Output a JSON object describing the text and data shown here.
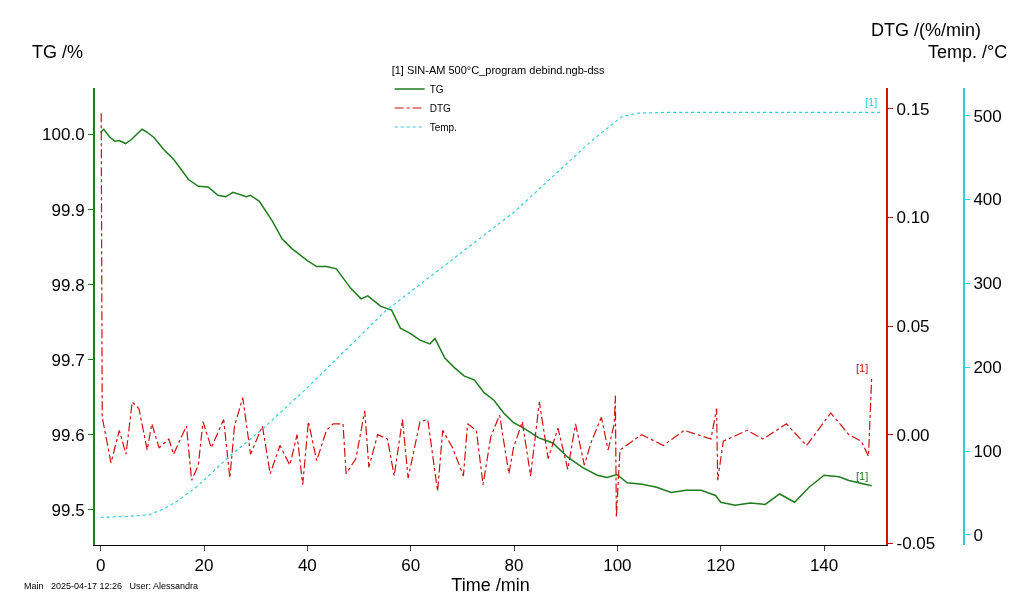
{
  "chart_data": {
    "type": "line",
    "legend_title": "[1] SIN-AM 500°C_program debind.ngb-dss",
    "xlabel": "Time /min",
    "ylabel": "TG /%",
    "y2label": "DTG /(%/min)",
    "y3label": "Temp. /°C",
    "xlim": [
      -1.1,
      152
    ],
    "xticks": [
      0,
      20,
      40,
      60,
      80,
      100,
      120,
      140
    ],
    "ylim": [
      99.453,
      100.062
    ],
    "yticks": [
      {
        "value": 99.5,
        "label": "99.5"
      },
      {
        "value": 99.6,
        "label": "99.6"
      },
      {
        "value": 99.7,
        "label": "99.7"
      },
      {
        "value": 99.8,
        "label": "99.8"
      },
      {
        "value": 99.9,
        "label": "99.9"
      },
      {
        "value": 100.0,
        "label": "100.0"
      }
    ],
    "y2lim": [
      -0.0508,
      0.1596
    ],
    "y2ticks": [
      -0.05,
      {
        "value": 0,
        "label": "0.00"
      },
      0.05,
      {
        "value": 0.1,
        "label": "0.10"
      },
      0.15
    ],
    "y3lim": [
      -12,
      533
    ],
    "y3ticks": [
      0,
      100,
      200,
      300,
      400,
      500
    ],
    "legend": "top",
    "series": [
      {
        "name": "TG",
        "color": "#1e7b1e",
        "line_style": "solid",
        "x": [
          0,
          0.6,
          1.7,
          2.7,
          3.6,
          4.8,
          5.9,
          8.0,
          9.0,
          10.3,
          12.2,
          14.1,
          15.4,
          17,
          18.9,
          20.8,
          22.7,
          24.2,
          25.6,
          28.2,
          29,
          30.7,
          33.2,
          35.1,
          37,
          40,
          41.8,
          43.7,
          45.6,
          48.4,
          50.4,
          51.7,
          54.2,
          56.3,
          58,
          59.9,
          61.8,
          63.7,
          64.7,
          66.6,
          68.5,
          70.4,
          72.3,
          74.2,
          76.1,
          78,
          79.9,
          81.8,
          84.7,
          87.5,
          90.4,
          93.3,
          96.1,
          98,
          99.9,
          101.9,
          104.8,
          107.6,
          110.4,
          113.3,
          116.2,
          119.0,
          120,
          122.8,
          125.7,
          128.6,
          131.4,
          134.3,
          137.1,
          140,
          142.9,
          144.8,
          149.2
        ],
        "values": [
          100.003,
          100.007,
          99.997,
          99.991,
          99.992,
          99.988,
          99.993,
          100.007,
          100.003,
          99.996,
          99.98,
          99.967,
          99.955,
          99.94,
          99.931,
          99.93,
          99.919,
          99.917,
          99.923,
          99.917,
          99.919,
          99.911,
          99.885,
          99.861,
          99.848,
          99.832,
          99.824,
          99.824,
          99.821,
          99.795,
          99.781,
          99.785,
          99.771,
          99.766,
          99.742,
          99.735,
          99.726,
          99.721,
          99.728,
          99.702,
          99.689,
          99.678,
          99.673,
          99.656,
          99.646,
          99.629,
          99.616,
          99.609,
          99.596,
          99.589,
          99.57,
          99.556,
          99.546,
          99.543,
          99.547,
          99.536,
          99.534,
          99.53,
          99.523,
          99.526,
          99.526,
          99.519,
          99.51,
          99.506,
          99.509,
          99.507,
          99.521,
          99.51,
          99.53,
          99.546,
          99.544,
          99.539,
          99.532
        ]
      },
      {
        "name": "DTG",
        "color": "#d01010",
        "line_style": "dashdot",
        "axis": "y2",
        "x": [
          0.1,
          0.3,
          2.0,
          3.6,
          4.9,
          6.1,
          7.4,
          9.0,
          9.9,
          11.3,
          13.2,
          14.1,
          16.6,
          17.6,
          18.9,
          19.8,
          21.4,
          23.8,
          25.0,
          25.9,
          27.5,
          29.0,
          31.3,
          32.8,
          34.7,
          36.6,
          38.0,
          39.1,
          40.2,
          41.8,
          43.7,
          45.0,
          46.9,
          47.5,
          49.4,
          51.1,
          51.9,
          53.6,
          55.5,
          56.8,
          58.4,
          59.5,
          61.8,
          63.3,
          65.2,
          66.2,
          68.1,
          70.2,
          71.0,
          72.7,
          74.0,
          75.5,
          77.2,
          79.0,
          79.9,
          81.6,
          83.2,
          84.9,
          86.6,
          88.5,
          90.4,
          91.9,
          93.6,
          95.0,
          96.9,
          98.2,
          99.4,
          99.6,
          99.8,
          100.5,
          104.7,
          108.9,
          112.9,
          118.1,
          119.2,
          119.4,
          120.5,
          125.1,
          128.2,
          132.7,
          136.6,
          141.3,
          144.8,
          147.2,
          148.6,
          149.2
        ],
        "values": [
          0.148,
          0.008,
          -0.013,
          0.002,
          -0.009,
          0.015,
          0.012,
          -0.007,
          0.005,
          -0.006,
          -0.002,
          -0.009,
          0.004,
          -0.021,
          -0.014,
          0.006,
          -0.006,
          0.007,
          -0.02,
          0.004,
          0.017,
          -0.009,
          0.004,
          -0.018,
          -0.005,
          -0.014,
          0.0,
          -0.023,
          0.006,
          -0.012,
          0.002,
          0.005,
          0.005,
          -0.018,
          -0.011,
          0.011,
          -0.015,
          0.0,
          -0.002,
          -0.019,
          0.007,
          -0.02,
          0.006,
          0.007,
          -0.026,
          0.002,
          -0.006,
          -0.019,
          0.005,
          0.002,
          -0.023,
          -0.001,
          0.009,
          -0.018,
          -0.006,
          0.006,
          -0.019,
          0.015,
          -0.011,
          0.003,
          -0.016,
          0.005,
          -0.014,
          -0.003,
          0.008,
          -0.007,
          0.005,
          0.018,
          -0.038,
          -0.007,
          0.0,
          -0.005,
          0.002,
          -0.002,
          0.012,
          -0.021,
          -0.003,
          0.002,
          -0.002,
          0.005,
          -0.005,
          0.01,
          0.0,
          -0.003,
          -0.01,
          0.026
        ]
      },
      {
        "name": "Temp.",
        "color": "#33ccdd",
        "line_style": "dotted",
        "axis": "y3",
        "x": [
          0,
          5,
          9.3,
          12.2,
          15,
          18.9,
          24.6,
          31.6,
          39.9,
          55.1,
          60.8,
          80,
          95,
          100.9,
          104,
          110,
          151
        ],
        "values": [
          21,
          22,
          24,
          31,
          41,
          59,
          92,
          128,
          175,
          267,
          294,
          385,
          470,
          499,
          503,
          504,
          504
        ]
      }
    ],
    "annotations": [
      "[1]",
      "[1]",
      "[1]",
      "Main   2025-04-17 12:26   User: Alessandra"
    ]
  }
}
